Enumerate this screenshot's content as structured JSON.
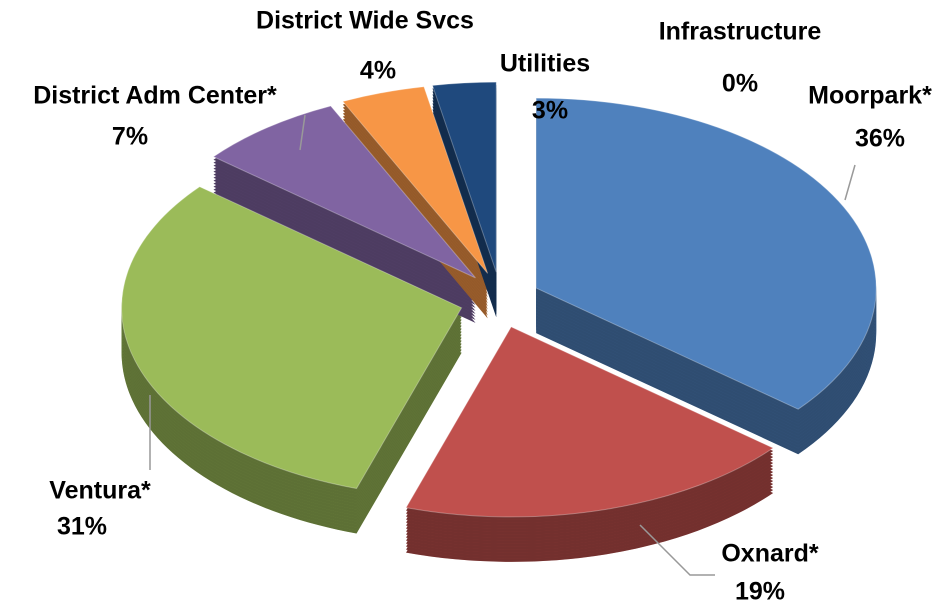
{
  "chart_data": {
    "type": "pie",
    "categories": [
      "Moorpark*",
      "Oxnard*",
      "Ventura*",
      "District Adm Center*",
      "Infrastructure",
      "District Wide Svcs",
      "Utilities"
    ],
    "values": [
      36,
      19,
      31,
      7,
      0,
      4,
      3
    ],
    "value_labels": [
      "36%",
      "19%",
      "31%",
      "7%",
      "0%",
      "4%",
      "3%"
    ],
    "colors": [
      "#4f81bd",
      "#c0504d",
      "#9bbb59",
      "#8064a2",
      "#31859c",
      "#f79646",
      "#1f497d"
    ]
  }
}
